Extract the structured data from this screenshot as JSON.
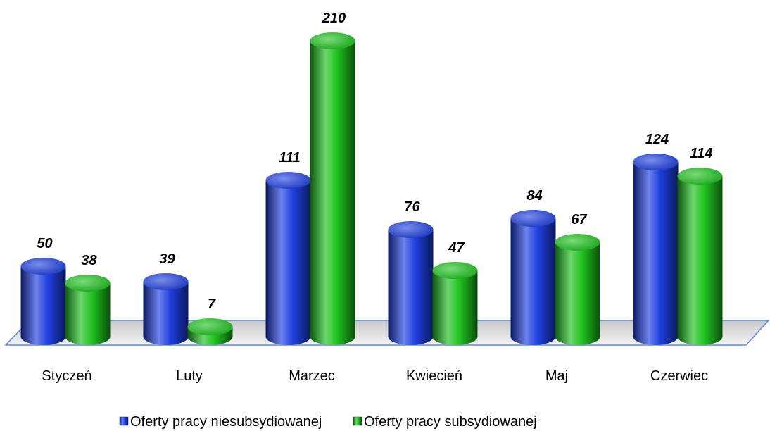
{
  "chart_data": {
    "type": "bar",
    "categories": [
      "Styczeń",
      "Luty",
      "Marzec",
      "Kwiecień",
      "Maj",
      "Czerwiec"
    ],
    "series": [
      {
        "name": "Oferty pracy niesubsydiowanej",
        "color": "#1f3fe0",
        "values": [
          50,
          39,
          111,
          76,
          84,
          124
        ]
      },
      {
        "name": "Oferty pracy subsydiowanej",
        "color": "#1fc21f",
        "values": [
          38,
          7,
          210,
          47,
          67,
          114
        ]
      }
    ],
    "legend": "bottom"
  }
}
